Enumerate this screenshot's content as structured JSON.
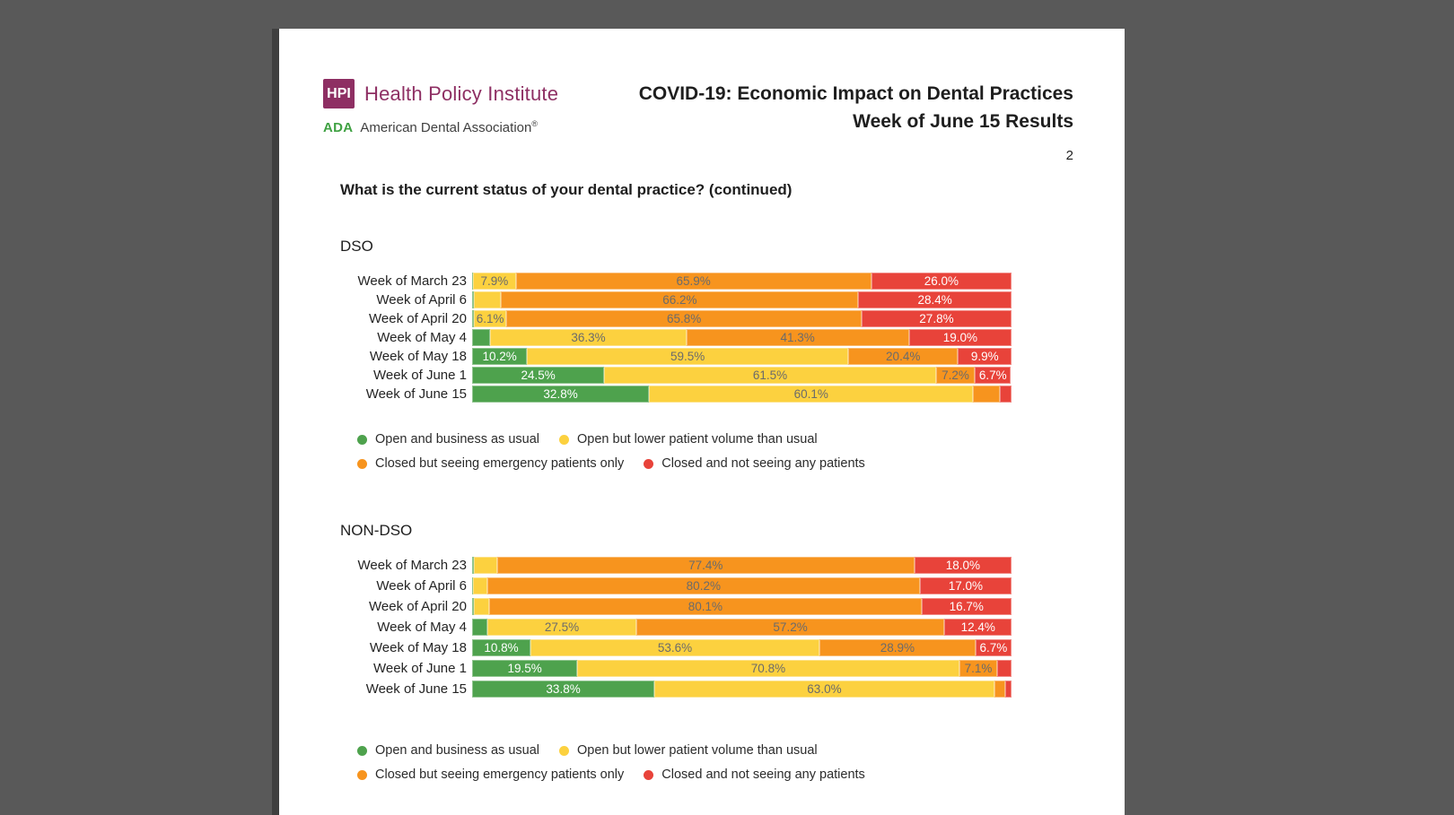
{
  "canvas": {
    "outer_background": "#595959",
    "page_background": "#ffffff",
    "page_shadow": "#3f3f3f"
  },
  "header": {
    "logo": {
      "hpi_box": "HPI",
      "hpi_name": "Health Policy Institute",
      "ada_abbr": "ADA",
      "ada_name": "American Dental Association",
      "registered_mark": "®",
      "brand_color": "#8E2F63",
      "ada_green": "#3FA142"
    },
    "title_line1": "COVID-19: Economic Impact on Dental Practices",
    "title_line2": "Week of June 15 Results",
    "page_number": "2"
  },
  "question": "What is the current status of your dental practice? (continued)",
  "legend": {
    "items": [
      {
        "label": "Open and business as usual",
        "color": "#4EA24D"
      },
      {
        "label": "Open but lower patient volume than usual",
        "color": "#FCD13F"
      },
      {
        "label": "Closed but seeing emergency patients only",
        "color": "#F7941E"
      },
      {
        "label": "Closed and not seeing any patients",
        "color": "#E8433A"
      }
    ]
  },
  "chart_data": [
    {
      "type": "bar",
      "orientation": "horizontal",
      "stacked": true,
      "title": "DSO",
      "xlim": [
        0,
        100
      ],
      "value_suffix": "%",
      "label_threshold_pct": 6,
      "categories": [
        "Week of March 23",
        "Week of April 6",
        "Week of April 20",
        "Week of May 4",
        "Week of May 18",
        "Week of June 1",
        "Week of June 15"
      ],
      "series": [
        {
          "name": "Open and business as usual",
          "color": "#4EA24D",
          "value_text_color": "#ffffff",
          "values": [
            0.2,
            0.4,
            0.3,
            3.4,
            10.2,
            24.5,
            32.8
          ]
        },
        {
          "name": "Open but lower patient volume than usual",
          "color": "#FCD13F",
          "value_text_color": "#6b6b6b",
          "values": [
            7.9,
            5.0,
            6.1,
            36.3,
            59.5,
            61.5,
            60.1
          ]
        },
        {
          "name": "Closed but seeing emergency patients only",
          "color": "#F7941E",
          "value_text_color": "#6b6b6b",
          "values": [
            65.9,
            66.2,
            65.8,
            41.3,
            20.4,
            7.2,
            5.0
          ]
        },
        {
          "name": "Closed and not seeing any patients",
          "color": "#E8433A",
          "value_text_color": "#ffffff",
          "values": [
            26.0,
            28.4,
            27.8,
            19.0,
            9.9,
            6.7,
            2.1
          ]
        }
      ]
    },
    {
      "type": "bar",
      "orientation": "horizontal",
      "stacked": true,
      "title": "NON-DSO",
      "xlim": [
        0,
        100
      ],
      "value_suffix": "%",
      "label_threshold_pct": 6,
      "categories": [
        "Week of March 23",
        "Week of April 6",
        "Week of April 20",
        "Week of May 4",
        "Week of May 18",
        "Week of June 1",
        "Week of June 15"
      ],
      "series": [
        {
          "name": "Open and business as usual",
          "color": "#4EA24D",
          "value_text_color": "#ffffff",
          "values": [
            0.3,
            0.2,
            0.3,
            2.9,
            10.8,
            19.5,
            33.8
          ]
        },
        {
          "name": "Open but lower patient volume than usual",
          "color": "#FCD13F",
          "value_text_color": "#6b6b6b",
          "values": [
            4.3,
            2.6,
            2.9,
            27.5,
            53.6,
            70.8,
            63.0
          ]
        },
        {
          "name": "Closed but seeing emergency patients only",
          "color": "#F7941E",
          "value_text_color": "#6b6b6b",
          "values": [
            77.4,
            80.2,
            80.1,
            57.2,
            28.9,
            7.1,
            2.0
          ]
        },
        {
          "name": "Closed and not seeing any patients",
          "color": "#E8433A",
          "value_text_color": "#ffffff",
          "values": [
            18.0,
            17.0,
            16.7,
            12.4,
            6.7,
            2.6,
            1.2
          ]
        }
      ]
    }
  ]
}
